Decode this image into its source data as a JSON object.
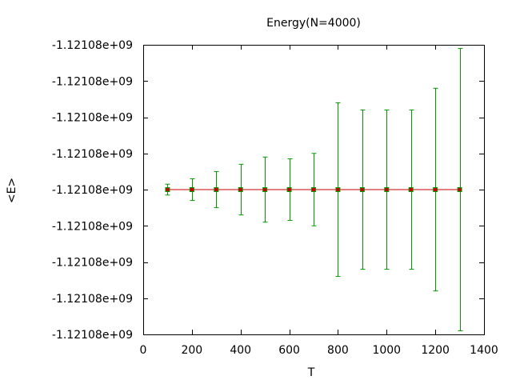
{
  "chart_data": {
    "type": "line",
    "title": "Energy(N=4000)",
    "xlabel": "T",
    "ylabel": "<E>",
    "xlim": [
      0,
      1400
    ],
    "x_ticks": [
      0,
      200,
      400,
      600,
      800,
      1000,
      1200,
      1400
    ],
    "y_tick_labels": [
      "-1.12108e+09",
      "-1.12108e+09",
      "-1.12108e+09",
      "-1.12108e+09",
      "-1.12108e+09",
      "-1.12108e+09",
      "-1.12108e+09",
      "-1.12108e+09",
      "-1.12108e+09"
    ],
    "grid": false,
    "series": [
      {
        "style": "line with error bars",
        "line_color": "#cc0000",
        "errorbar_color": "#009900",
        "marker_color": "#cc0000",
        "x": [
          100,
          200,
          300,
          400,
          500,
          600,
          700,
          800,
          900,
          1000,
          1100,
          1200,
          1300
        ],
        "y_relative_to_center_in_tick_steps": [
          0,
          0,
          0,
          0,
          0,
          0,
          0,
          0,
          0,
          0,
          0,
          0,
          0
        ],
        "error_in_tick_steps": [
          0.15,
          0.3,
          0.5,
          0.7,
          0.9,
          0.85,
          1.0,
          2.4,
          2.2,
          2.2,
          2.2,
          2.8,
          3.9
        ]
      }
    ]
  }
}
